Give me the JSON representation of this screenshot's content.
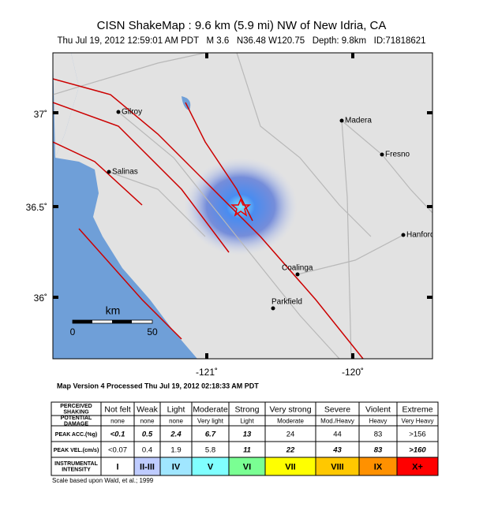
{
  "header": {
    "title": "CISN ShakeMap : 9.6 km (5.9 mi) NW of New Idria, CA",
    "subtitle": "Thu Jul 19, 2012 12:59:01 AM PDT   M 3.6   N36.48 W120.75   Depth: 9.8km   ID:71818621"
  },
  "map": {
    "lat_labels": [
      "37˚",
      "36.5˚",
      "36˚"
    ],
    "lon_labels": [
      "-121˚",
      "-120˚"
    ],
    "cities": [
      "Gilroy",
      "Madera",
      "Fresno",
      "Salinas",
      "Hanford",
      "Coalinga",
      "Parkfield"
    ],
    "scale_bar": {
      "unit": "km",
      "labels": [
        "0",
        "50"
      ]
    }
  },
  "version_note": "Map Version 4 Processed Thu Jul 19, 2012 02:18:33 AM PDT",
  "legend_table": {
    "rows": [
      [
        "PERCEIVED SHAKING",
        "Not felt",
        "Weak",
        "Light",
        "Moderate",
        "Strong",
        "Very strong",
        "Severe",
        "Violent",
        "Extreme"
      ],
      [
        "POTENTIAL DAMAGE",
        "none",
        "none",
        "none",
        "Very light",
        "Light",
        "Moderate",
        "Mod./Heavy",
        "Heavy",
        "Very Heavy"
      ],
      [
        "PEAK ACC.(%g)",
        "<0.1",
        "0.5",
        "2.4",
        "6.7",
        "13",
        "24",
        "44",
        "83",
        ">156"
      ],
      [
        "PEAK VEL.(cm/s)",
        "<0.07",
        "0.4",
        "1.9",
        "5.8",
        "11",
        "22",
        "43",
        "83",
        ">160"
      ],
      [
        "INSTRUMENTAL INTENSITY",
        "I",
        "II-III",
        "IV",
        "V",
        "VI",
        "VII",
        "VIII",
        "IX",
        "X+"
      ]
    ]
  },
  "footnote": "Scale based upon Wald, et al.; 1999"
}
